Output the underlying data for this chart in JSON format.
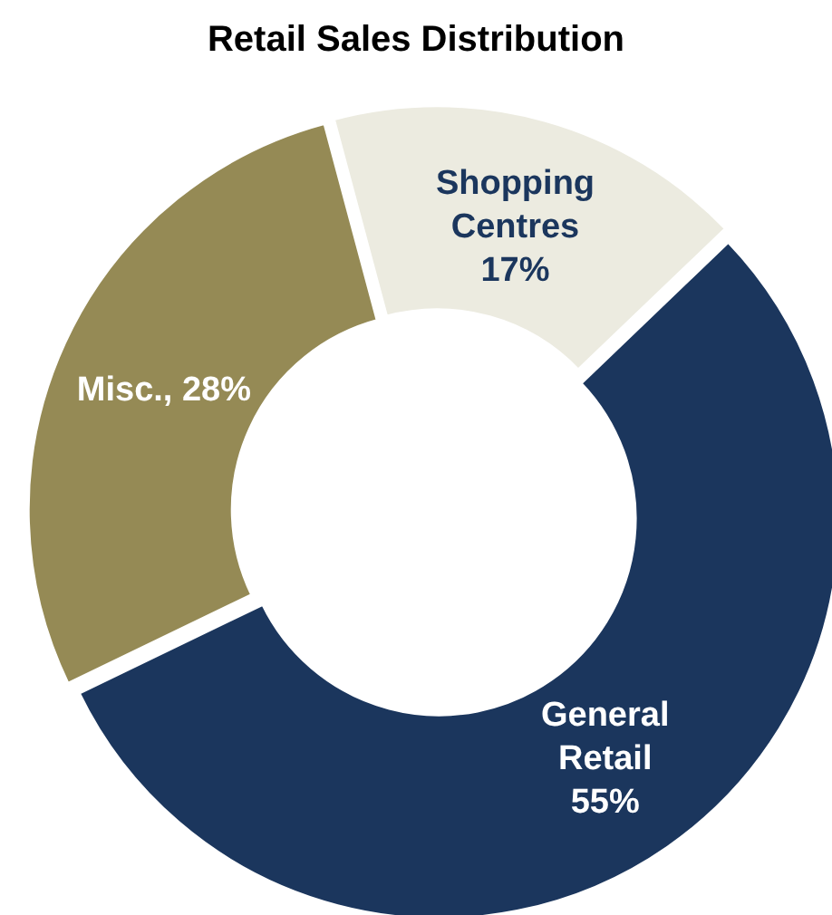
{
  "chart_data": {
    "type": "donut",
    "title": "Retail Sales Distribution",
    "categories": [
      "Shopping Centres",
      "General Retail",
      "Misc."
    ],
    "values": [
      17,
      55,
      28
    ],
    "colors": [
      "#ecebe0",
      "#1b365d",
      "#958a55"
    ],
    "value_labels": [
      "17%",
      "55%",
      "28%"
    ]
  }
}
